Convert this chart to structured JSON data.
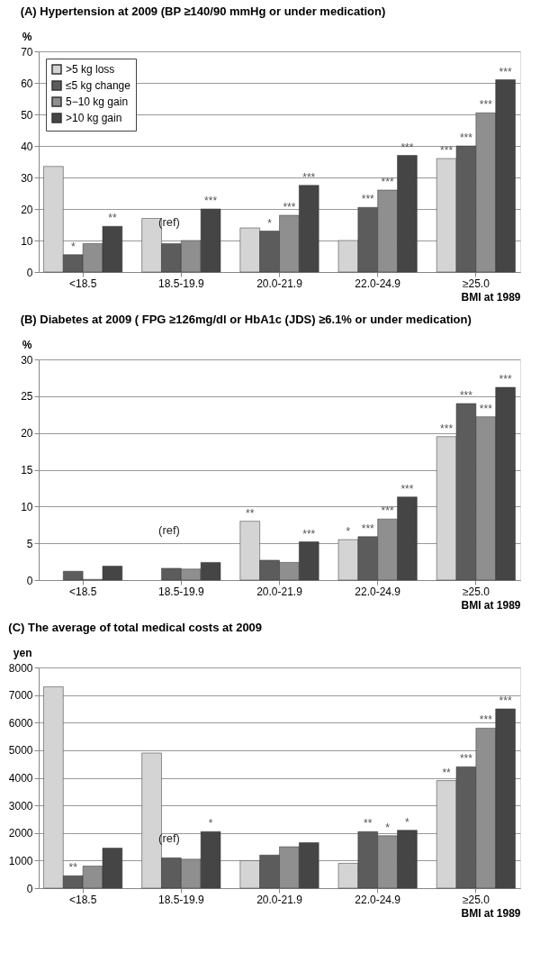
{
  "chart_data": [
    {
      "type": "bar",
      "title": "(A) Hypertension at 2009 (BP ≥140/90 mmHg or under medication)",
      "ylabel": "%",
      "xlabel": "BMI at 1989",
      "categories": [
        "<18.5",
        "18.5-19.9",
        "20.0-21.9",
        "22.0-24.9",
        "≥25.0"
      ],
      "series": [
        {
          "name": ">5 kg loss",
          "color": "#d4d4d4",
          "values": [
            33.5,
            17,
            14,
            10,
            36
          ],
          "value_labels": [
            null,
            null,
            null,
            null,
            "***"
          ]
        },
        {
          "name": "≤5 kg change",
          "color": "#5c5c5c",
          "values": [
            5.5,
            9,
            13,
            20.5,
            40
          ],
          "value_labels": [
            "*",
            null,
            "*",
            "***",
            "***"
          ]
        },
        {
          "name": "5−10 kg gain",
          "color": "#8f8f8f",
          "values": [
            9,
            10,
            18,
            26,
            50.5
          ],
          "value_labels": [
            null,
            null,
            "***",
            "***",
            "***"
          ]
        },
        {
          "name": ">10 kg gain",
          "color": "#454545",
          "values": [
            14.5,
            20,
            27.5,
            37,
            61
          ],
          "value_labels": [
            "**",
            "***",
            "***",
            "***",
            "***"
          ]
        }
      ],
      "annotations": [
        "(ref)"
      ],
      "ylim": [
        0,
        70
      ],
      "yticks": [
        0,
        10,
        20,
        30,
        40,
        50,
        60,
        70
      ],
      "grid": "y",
      "legend": "top left"
    },
    {
      "type": "bar",
      "title": "(B) Diabetes at 2009 ( FPG ≥126mg/dl or HbA1c (JDS) ≥6.1%  or  under medication)",
      "ylabel": "%",
      "xlabel": "BMI at 1989",
      "categories": [
        "<18.5",
        "18.5-19.9",
        "20.0-21.9",
        "22.0-24.9",
        "≥25.0"
      ],
      "series": [
        {
          "name": ">5 kg loss",
          "color": "#d4d4d4",
          "values": [
            null,
            null,
            8,
            5.5,
            19.5
          ],
          "value_labels": [
            null,
            null,
            "**",
            "*",
            "***"
          ]
        },
        {
          "name": "≤5 kg change",
          "color": "#5c5c5c",
          "values": [
            1.2,
            1.6,
            2.7,
            5.9,
            24
          ],
          "value_labels": [
            null,
            null,
            null,
            "***",
            "***"
          ]
        },
        {
          "name": "5−10 kg gain",
          "color": "#8f8f8f",
          "values": [
            0.1,
            1.5,
            2.4,
            8.3,
            22.2
          ],
          "value_labels": [
            null,
            null,
            null,
            "***",
            "***"
          ]
        },
        {
          "name": ">10 kg gain",
          "color": "#454545",
          "values": [
            1.9,
            2.4,
            5.2,
            11.3,
            26.2
          ],
          "value_labels": [
            null,
            null,
            "***",
            "***",
            "***"
          ]
        }
      ],
      "annotations": [
        "(ref)"
      ],
      "ylim": [
        0,
        30
      ],
      "yticks": [
        0,
        5,
        10,
        15,
        20,
        25,
        30
      ],
      "grid": "y",
      "legend": "top left"
    },
    {
      "type": "bar",
      "title": "(C) The average of total medical costs at 2009",
      "ylabel": "yen",
      "xlabel": "BMI at 1989",
      "categories": [
        "<18.5",
        "18.5-19.9",
        "20.0-21.9",
        "22.0-24.9",
        "≥25.0"
      ],
      "series": [
        {
          "name": ">5 kg loss",
          "color": "#d4d4d4",
          "values": [
            7300,
            4900,
            1000,
            900,
            3900
          ],
          "value_labels": [
            null,
            null,
            null,
            null,
            "**"
          ]
        },
        {
          "name": "≤5 kg change",
          "color": "#5c5c5c",
          "values": [
            450,
            1100,
            1200,
            2050,
            4400
          ],
          "value_labels": [
            "**",
            null,
            null,
            "**",
            "***"
          ]
        },
        {
          "name": "5−10 kg gain",
          "color": "#8f8f8f",
          "values": [
            800,
            1050,
            1500,
            1900,
            5800
          ],
          "value_labels": [
            null,
            null,
            null,
            "*",
            "***"
          ]
        },
        {
          "name": ">10 kg gain",
          "color": "#454545",
          "values": [
            1450,
            2050,
            1650,
            2100,
            6500
          ],
          "value_labels": [
            null,
            "*",
            null,
            "*",
            "***"
          ]
        }
      ],
      "annotations": [
        "(ref)"
      ],
      "ylim": [
        0,
        8000
      ],
      "yticks": [
        0,
        1000,
        2000,
        3000,
        4000,
        5000,
        6000,
        7000,
        8000
      ],
      "grid": "y",
      "legend": "top left"
    }
  ]
}
